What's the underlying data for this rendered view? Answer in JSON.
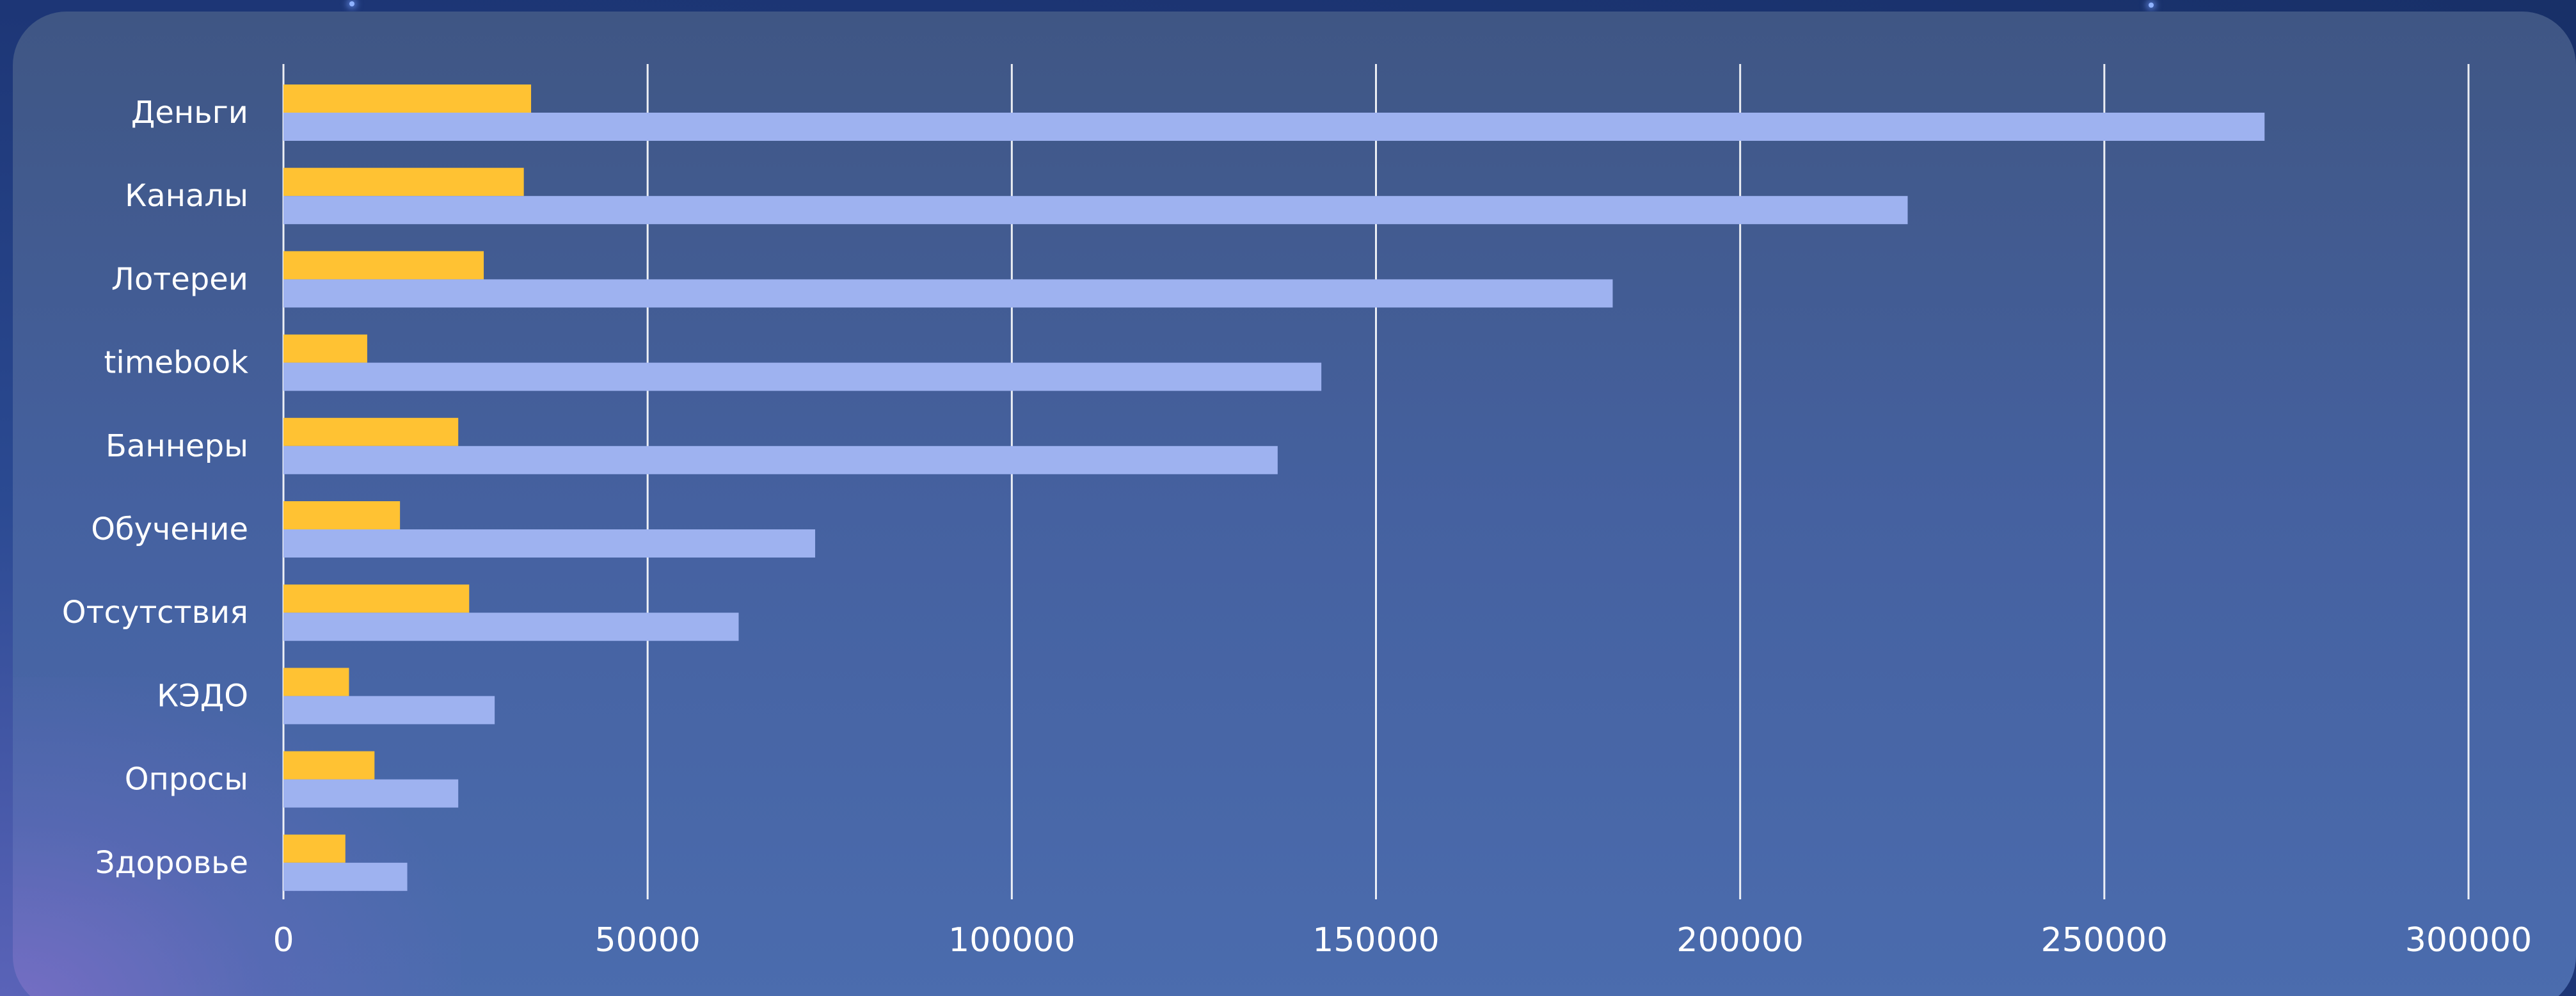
{
  "colors": {
    "series_a": "#ffc233",
    "series_b": "#9eb2f0",
    "grid": "#ffffff"
  },
  "chart_data": {
    "type": "bar",
    "orientation": "horizontal",
    "title": "",
    "xlabel": "",
    "ylabel": "",
    "categories": [
      "Деньги",
      "Каналы",
      "Лотереи",
      "timebook",
      "Баннеры",
      "Обучение",
      "Отсутствия",
      "КЭДО",
      "Опросы",
      "Здоровье"
    ],
    "series": [
      {
        "values": [
          34000,
          33000,
          27500,
          11500,
          24000,
          16000,
          25500,
          9000,
          12500,
          8500
        ]
      },
      {
        "values": [
          272000,
          223000,
          182500,
          142500,
          136500,
          73000,
          62500,
          29000,
          24000,
          17000
        ]
      }
    ],
    "xlim": [
      0,
      300000
    ],
    "xticks": [
      0,
      50000,
      100000,
      150000,
      200000,
      250000,
      300000
    ],
    "xtick_labels": [
      "0",
      "50000",
      "100000",
      "150000",
      "200000",
      "250000",
      "300000"
    ],
    "grid": "vertical",
    "legend": "none"
  }
}
